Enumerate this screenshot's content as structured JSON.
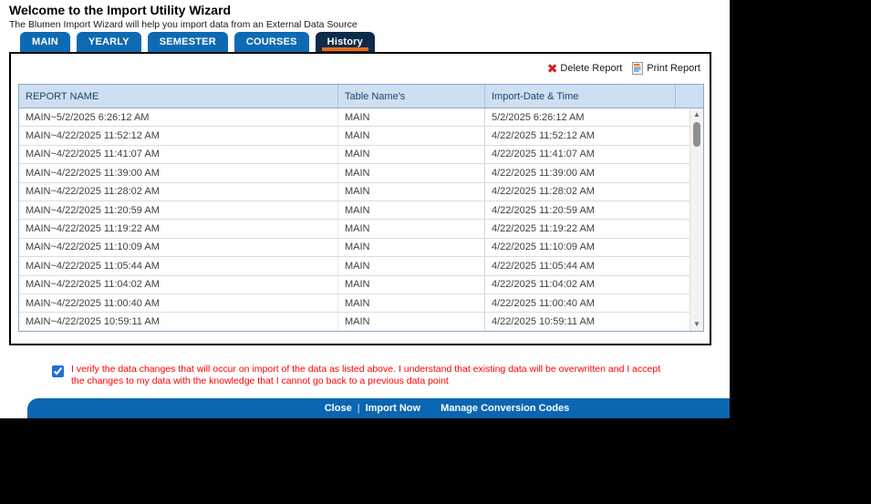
{
  "header": {
    "title": "Welcome to the Import Utility Wizard",
    "subtitle": "The Blumen Import Wizard will help you import data from an External Data Source"
  },
  "tabs": [
    {
      "label": "MAIN",
      "active": false
    },
    {
      "label": "YEARLY",
      "active": false
    },
    {
      "label": "SEMESTER",
      "active": false
    },
    {
      "label": "COURSES",
      "active": false
    },
    {
      "label": "History",
      "active": true
    }
  ],
  "toolbar": {
    "delete_icon": "✖",
    "delete_label": "Delete Report",
    "print_label": "Print Report"
  },
  "table": {
    "columns": [
      "REPORT NAME",
      "Table Name's",
      "Import-Date & Time"
    ],
    "rows": [
      {
        "report_name": "MAIN~5/2/2025 6:26:12 AM",
        "table_name": "MAIN",
        "import_datetime": "5/2/2025 6:26:12 AM"
      },
      {
        "report_name": "MAIN~4/22/2025 11:52:12 AM",
        "table_name": "MAIN",
        "import_datetime": "4/22/2025 11:52:12 AM"
      },
      {
        "report_name": "MAIN~4/22/2025 11:41:07 AM",
        "table_name": "MAIN",
        "import_datetime": "4/22/2025 11:41:07 AM"
      },
      {
        "report_name": "MAIN~4/22/2025 11:39:00 AM",
        "table_name": "MAIN",
        "import_datetime": "4/22/2025 11:39:00 AM"
      },
      {
        "report_name": "MAIN~4/22/2025 11:28:02 AM",
        "table_name": "MAIN",
        "import_datetime": "4/22/2025 11:28:02 AM"
      },
      {
        "report_name": "MAIN~4/22/2025 11:20:59 AM",
        "table_name": "MAIN",
        "import_datetime": "4/22/2025 11:20:59 AM"
      },
      {
        "report_name": "MAIN~4/22/2025 11:19:22 AM",
        "table_name": "MAIN",
        "import_datetime": "4/22/2025 11:19:22 AM"
      },
      {
        "report_name": "MAIN~4/22/2025 11:10:09 AM",
        "table_name": "MAIN",
        "import_datetime": "4/22/2025 11:10:09 AM"
      },
      {
        "report_name": "MAIN~4/22/2025 11:05:44 AM",
        "table_name": "MAIN",
        "import_datetime": "4/22/2025 11:05:44 AM"
      },
      {
        "report_name": "MAIN~4/22/2025 11:04:02 AM",
        "table_name": "MAIN",
        "import_datetime": "4/22/2025 11:04:02 AM"
      },
      {
        "report_name": "MAIN~4/22/2025 11:00:40 AM",
        "table_name": "MAIN",
        "import_datetime": "4/22/2025 11:00:40 AM"
      },
      {
        "report_name": "MAIN~4/22/2025 10:59:11 AM",
        "table_name": "MAIN",
        "import_datetime": "4/22/2025 10:59:11 AM"
      }
    ]
  },
  "confirmation": {
    "checked": true,
    "text": "I verify the data changes that will occur on import of the data as listed above. I understand that existing data will be overwritten and I accept the changes to my data with the knowledge that I cannot go back to a previous data point"
  },
  "footer": {
    "actions": [
      "Close",
      "Import Now",
      "Manage Conversion Codes"
    ]
  },
  "colors": {
    "tab_blue": "#0e6ab2",
    "tab_active_navy": "#0d2b4a",
    "accent_orange": "#ed6a11",
    "table_header_bg": "#cfdff2",
    "table_header_text": "#1c4472",
    "footer_bar_blue": "#0a66b2",
    "warning_red": "#fe0000",
    "delete_x_red": "#d41f1f"
  }
}
